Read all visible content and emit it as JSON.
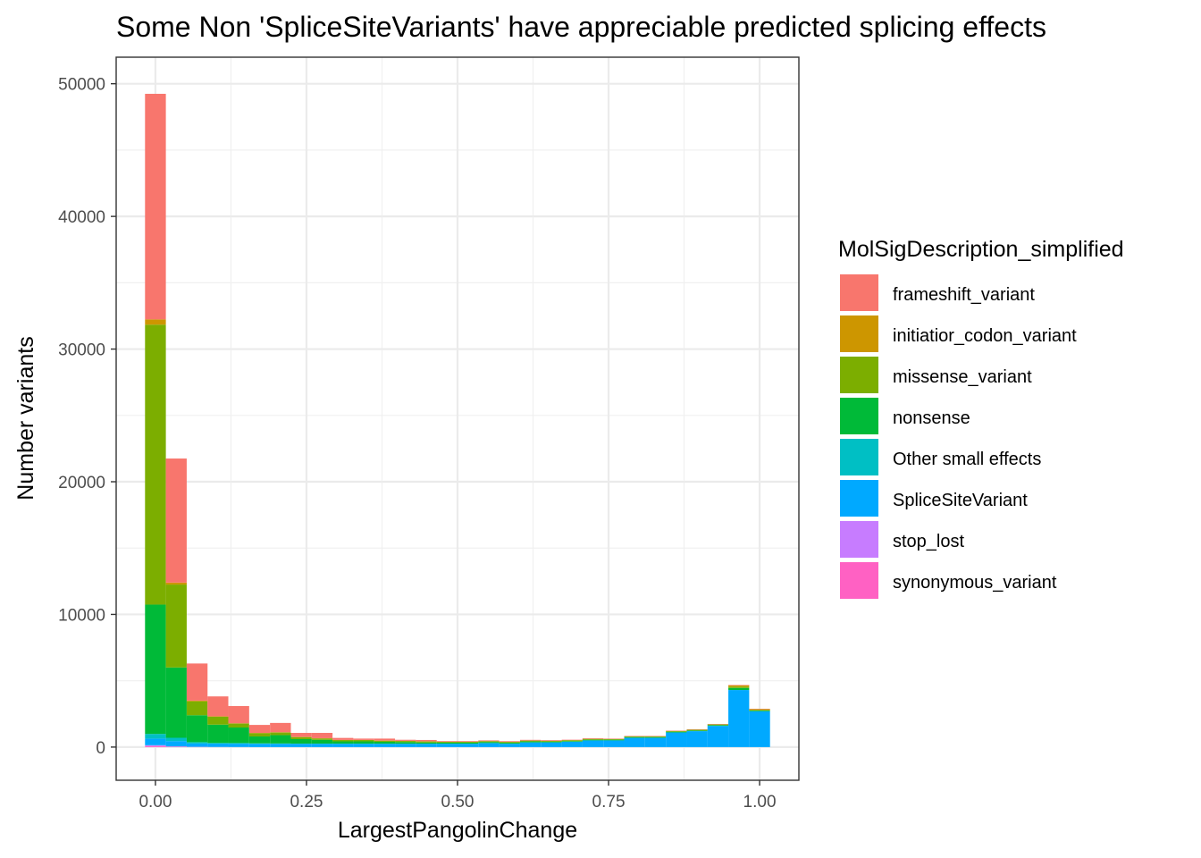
{
  "chart_data": {
    "type": "bar",
    "subtype": "stacked-histogram",
    "title": "Some Non 'SpliceSiteVariants' have appreciable predicted splicing effects",
    "xlabel": "LargestPangolinChange",
    "ylabel": "Number variants",
    "xlim": [
      -0.065,
      1.065
    ],
    "ylim": [
      -2500,
      52000
    ],
    "x_ticks": [
      0.0,
      0.25,
      0.5,
      0.75,
      1.0
    ],
    "x_tick_labels": [
      "0.00",
      "0.25",
      "0.50",
      "0.75",
      "1.00"
    ],
    "y_ticks": [
      0,
      10000,
      20000,
      30000,
      40000,
      50000
    ],
    "y_tick_labels": [
      "0",
      "10000",
      "20000",
      "30000",
      "40000",
      "50000"
    ],
    "grid": true,
    "bins": 30,
    "bin_width": 0.03448,
    "x": [
      0.0,
      0.0345,
      0.069,
      0.1034,
      0.1379,
      0.1724,
      0.2069,
      0.2414,
      0.2759,
      0.3103,
      0.3448,
      0.3793,
      0.4138,
      0.4483,
      0.4828,
      0.5172,
      0.5517,
      0.5862,
      0.6207,
      0.6552,
      0.6897,
      0.7241,
      0.7586,
      0.7931,
      0.8276,
      0.8621,
      0.8966,
      0.931,
      0.9655,
      1.0
    ],
    "legend": {
      "title": "MolSigDescription_simplified",
      "placement": "right"
    },
    "series": [
      {
        "name": "synonymous_variant",
        "color": "#FF61C3",
        "values": [
          80,
          30,
          10,
          5,
          5,
          0,
          0,
          0,
          0,
          0,
          0,
          0,
          0,
          0,
          0,
          0,
          0,
          0,
          0,
          0,
          0,
          0,
          0,
          0,
          0,
          0,
          0,
          0,
          0,
          0
        ]
      },
      {
        "name": "stop_lost",
        "color": "#C77CFF",
        "values": [
          60,
          20,
          10,
          5,
          0,
          0,
          0,
          0,
          0,
          0,
          0,
          0,
          0,
          0,
          0,
          0,
          0,
          0,
          0,
          0,
          0,
          0,
          0,
          0,
          0,
          0,
          0,
          0,
          0,
          0
        ]
      },
      {
        "name": "SpliceSiteVariant",
        "color": "#00A9FF",
        "values": [
          500,
          400,
          250,
          250,
          250,
          250,
          250,
          250,
          250,
          250,
          250,
          250,
          250,
          250,
          250,
          250,
          300,
          250,
          350,
          350,
          400,
          500,
          500,
          700,
          700,
          1100,
          1200,
          1600,
          4300,
          2700
        ]
      },
      {
        "name": "Other small effects",
        "color": "#00BFC4",
        "values": [
          350,
          250,
          100,
          50,
          50,
          30,
          20,
          10,
          10,
          10,
          10,
          10,
          10,
          5,
          5,
          5,
          5,
          5,
          5,
          5,
          5,
          5,
          5,
          5,
          5,
          5,
          5,
          5,
          5,
          5
        ]
      },
      {
        "name": "nonsense",
        "color": "#00BA38",
        "values": [
          9750,
          5300,
          2030,
          1380,
          1170,
          520,
          630,
          340,
          290,
          170,
          170,
          140,
          120,
          90,
          80,
          80,
          80,
          70,
          70,
          50,
          50,
          50,
          50,
          50,
          50,
          50,
          50,
          50,
          150,
          50
        ]
      },
      {
        "name": "missense_variant",
        "color": "#7CAE00",
        "values": [
          21100,
          6250,
          1050,
          600,
          300,
          250,
          200,
          150,
          100,
          100,
          100,
          80,
          80,
          80,
          60,
          60,
          60,
          60,
          60,
          60,
          60,
          60,
          50,
          50,
          50,
          50,
          50,
          50,
          100,
          50
        ]
      },
      {
        "name": "initiatior_codon_variant",
        "color": "#CD9600",
        "values": [
          400,
          150,
          50,
          30,
          20,
          20,
          20,
          20,
          20,
          10,
          10,
          10,
          10,
          10,
          10,
          10,
          10,
          10,
          10,
          10,
          10,
          10,
          10,
          10,
          10,
          10,
          10,
          10,
          100,
          50
        ]
      },
      {
        "name": "frameshift_variant",
        "color": "#F8766D",
        "values": [
          17000,
          9350,
          2800,
          1500,
          1300,
          600,
          700,
          300,
          400,
          150,
          100,
          150,
          80,
          100,
          50,
          50,
          50,
          50,
          50,
          50,
          30,
          40,
          30,
          30,
          30,
          30,
          30,
          30,
          30,
          30
        ]
      }
    ]
  }
}
